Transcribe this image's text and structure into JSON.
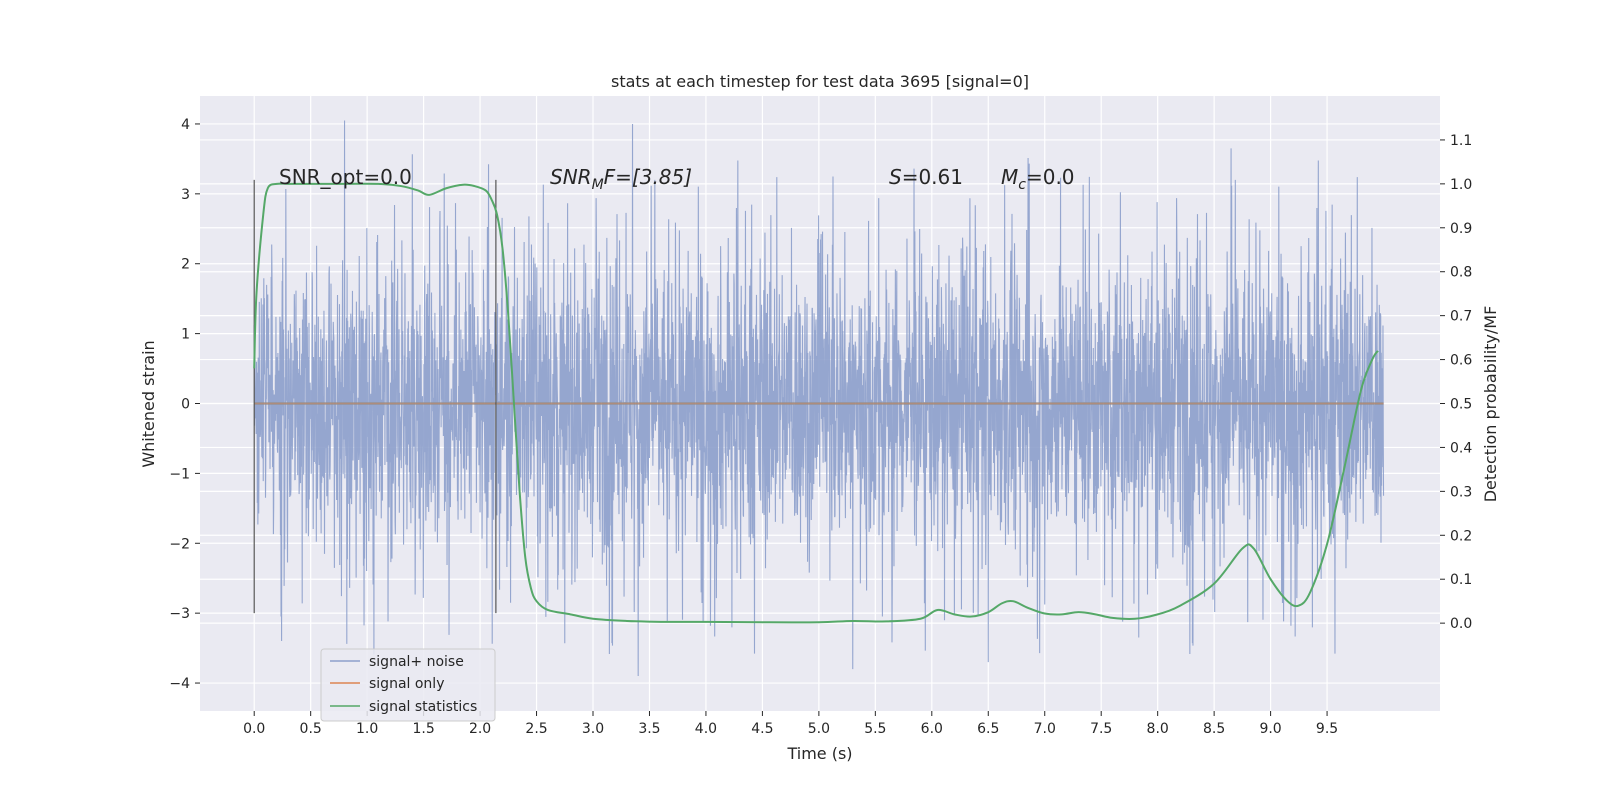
{
  "chart_data": {
    "type": "line",
    "title": "stats at each timestep for test data 3695 [signal=0]",
    "xlabel": "Time (s)",
    "ylabel_left": "Whitened strain",
    "ylabel_right": "Detection probability/MF",
    "xlim": [
      -0.48,
      10.5
    ],
    "ylim_left": [
      -4.4,
      4.4
    ],
    "ylim_right": [
      -0.2,
      1.2
    ],
    "grid": true,
    "legend_position": "lower-left",
    "x_ticks": [
      "0.0",
      "0.5",
      "1.0",
      "1.5",
      "2.0",
      "2.5",
      "3.0",
      "3.5",
      "4.0",
      "4.5",
      "5.0",
      "5.5",
      "6.0",
      "6.5",
      "7.0",
      "7.5",
      "8.0",
      "8.5",
      "9.0",
      "9.5"
    ],
    "y_ticks_left": [
      "4",
      "3",
      "2",
      "1",
      "0",
      "−1",
      "−2",
      "−3",
      "−4"
    ],
    "y_ticks_right": [
      "1.1",
      "1.0",
      "0.9",
      "0.8",
      "0.7",
      "0.6",
      "0.5",
      "0.4",
      "0.3",
      "0.2",
      "0.1",
      "0.0"
    ],
    "annotations": {
      "snr_opt": "SNR_opt=0.0",
      "snr_mf_base": "SNR",
      "snr_mf_sub": "M",
      "snr_mf_rest": "F=[3.85]",
      "s_var": "S",
      "s_val": "=0.61",
      "mc_var": "M",
      "mc_sub": "c",
      "mc_val": "=0.0"
    },
    "vertical_markers": [
      {
        "x": 0.0,
        "y_range": [
          -3.0,
          3.2
        ]
      },
      {
        "x": 2.14,
        "y_range": [
          -3.0,
          3.2
        ]
      }
    ],
    "series": [
      {
        "name": "signal+ noise",
        "color": "#8c9fcb",
        "x_range": [
          0.0,
          10.0
        ],
        "amplitude_range": [
          -3.9,
          4.05
        ],
        "typical_envelope": [
          -2.0,
          2.4
        ],
        "notable_peaks": [
          [
            0.8,
            4.05
          ],
          [
            3.35,
            4.0
          ],
          [
            8.65,
            3.65
          ],
          [
            3.4,
            -3.9
          ],
          [
            5.3,
            -3.8
          ],
          [
            6.5,
            -3.7
          ]
        ]
      },
      {
        "name": "signal only",
        "color": "#dd8452",
        "x": [
          0.0,
          10.0
        ],
        "y": [
          0.0,
          0.0
        ]
      },
      {
        "name": "signal statistics",
        "color": "#55a868",
        "axis": "right",
        "x": [
          0.0,
          0.02,
          0.08,
          0.12,
          0.2,
          0.3,
          0.5,
          0.8,
          1.1,
          1.3,
          1.45,
          1.55,
          1.7,
          1.85,
          1.95,
          2.05,
          2.1,
          2.15,
          2.2,
          2.25,
          2.3,
          2.35,
          2.4,
          2.45,
          2.5,
          2.6,
          2.8,
          3.0,
          3.3,
          3.6,
          4.0,
          4.5,
          5.0,
          5.3,
          5.6,
          5.9,
          6.05,
          6.2,
          6.35,
          6.5,
          6.62,
          6.72,
          6.85,
          7.0,
          7.15,
          7.3,
          7.45,
          7.6,
          7.8,
          8.0,
          8.2,
          8.5,
          8.75,
          8.85,
          9.0,
          9.15,
          9.25,
          9.35,
          9.5,
          9.65,
          9.8,
          9.9,
          9.95
        ],
        "y": [
          0.58,
          0.75,
          0.93,
          0.99,
          1.0,
          1.0,
          1.0,
          1.0,
          1.0,
          0.995,
          0.985,
          0.975,
          0.99,
          0.998,
          0.995,
          0.985,
          0.965,
          0.93,
          0.85,
          0.7,
          0.5,
          0.3,
          0.15,
          0.08,
          0.05,
          0.03,
          0.02,
          0.01,
          0.005,
          0.003,
          0.003,
          0.002,
          0.002,
          0.005,
          0.004,
          0.01,
          0.03,
          0.02,
          0.015,
          0.025,
          0.045,
          0.05,
          0.035,
          0.022,
          0.02,
          0.025,
          0.02,
          0.012,
          0.01,
          0.02,
          0.04,
          0.09,
          0.17,
          0.17,
          0.1,
          0.05,
          0.04,
          0.07,
          0.18,
          0.35,
          0.53,
          0.6,
          0.62
        ]
      }
    ]
  }
}
